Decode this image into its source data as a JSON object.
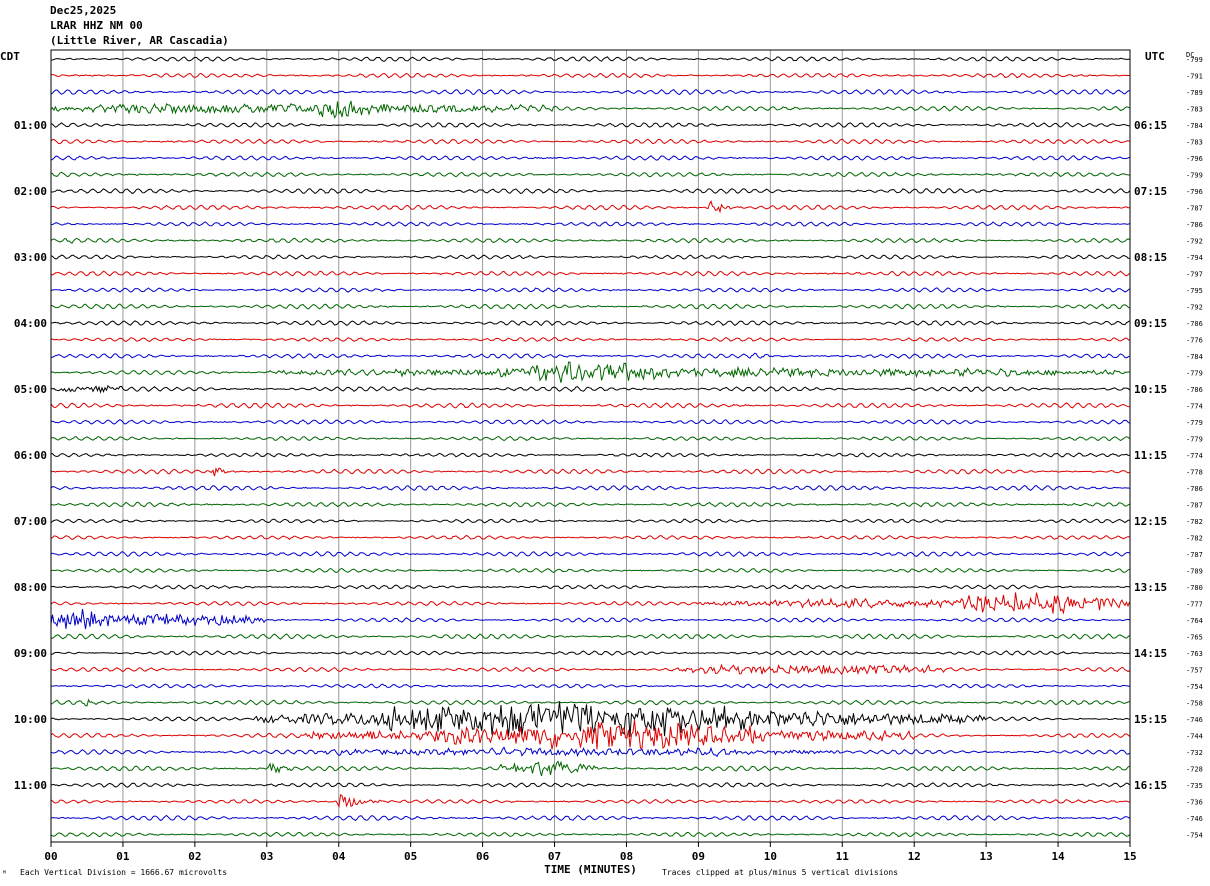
{
  "header": {
    "date": "Dec25,2025",
    "station": "LRAR HHZ NM 00",
    "location": "(Little River, AR Cascadia)"
  },
  "left_axis_label": "CDT",
  "right_axis_label": "UTC",
  "dc_label": "DC",
  "footer": {
    "mark": "ᴹ",
    "scale": "Each Vertical Division = 1666.67 microvolts",
    "xlabel": "TIME (MINUTES)",
    "clip_note": "Traces clipped at plus/minus 5 vertical divisions"
  },
  "chart_data": {
    "type": "line",
    "title": "LRAR HHZ NM 00",
    "xlabel": "TIME (MINUTES)",
    "xlim": [
      0,
      15
    ],
    "x_ticks": [
      "00",
      "01",
      "02",
      "03",
      "04",
      "05",
      "06",
      "07",
      "08",
      "09",
      "10",
      "11",
      "12",
      "13",
      "14",
      "15"
    ],
    "trace_colors": [
      "#000000",
      "#dd0000",
      "#0000cc",
      "#006600"
    ],
    "left_time_labels": [
      {
        "row": 4,
        "label": "01:00"
      },
      {
        "row": 8,
        "label": "02:00"
      },
      {
        "row": 12,
        "label": "03:00"
      },
      {
        "row": 16,
        "label": "04:00"
      },
      {
        "row": 20,
        "label": "05:00"
      },
      {
        "row": 24,
        "label": "06:00"
      },
      {
        "row": 28,
        "label": "07:00"
      },
      {
        "row": 32,
        "label": "08:00"
      },
      {
        "row": 36,
        "label": "09:00"
      },
      {
        "row": 40,
        "label": "10:00"
      },
      {
        "row": 44,
        "label": "11:00"
      }
    ],
    "right_time_labels": [
      {
        "row": 4,
        "label": "06:15"
      },
      {
        "row": 8,
        "label": "07:15"
      },
      {
        "row": 12,
        "label": "08:15"
      },
      {
        "row": 16,
        "label": "09:15"
      },
      {
        "row": 20,
        "label": "10:15"
      },
      {
        "row": 24,
        "label": "11:15"
      },
      {
        "row": 28,
        "label": "12:15"
      },
      {
        "row": 32,
        "label": "13:15"
      },
      {
        "row": 36,
        "label": "14:15"
      },
      {
        "row": 40,
        "label": "15:15"
      },
      {
        "row": 44,
        "label": "16:15"
      }
    ],
    "dc_offsets": [
      "-799",
      "-791",
      "-789",
      "-783",
      "-784",
      "-783",
      "-796",
      "-799",
      "-796",
      "-787",
      "-786",
      "-792",
      "-794",
      "-797",
      "-795",
      "-792",
      "-786",
      "-776",
      "-784",
      "-779",
      "-786",
      "-774",
      "-779",
      "-779",
      "-774",
      "-778",
      "-786",
      "-787",
      "-782",
      "-782",
      "-787",
      "-789",
      "-780",
      "-777",
      "-764",
      "-765",
      "-763",
      "-757",
      "-754",
      "-758",
      "-746",
      "-744",
      "-732",
      "-728",
      "-735",
      "-736",
      "-746",
      "-754"
    ],
    "events": [
      {
        "row": 3,
        "start": 0.0,
        "end": 7.0,
        "amp": 0.5,
        "kind": "noise"
      },
      {
        "row": 3,
        "start": 3.7,
        "end": 4.5,
        "amp": 0.8,
        "kind": "noise"
      },
      {
        "row": 9,
        "start": 9.1,
        "end": 9.6,
        "amp": 1.6,
        "kind": "quake"
      },
      {
        "row": 11,
        "start": 0.15,
        "end": 0.45,
        "amp": 0.5,
        "kind": "quake"
      },
      {
        "row": 18,
        "start": 9.7,
        "end": 10.1,
        "amp": 0.4,
        "kind": "quake"
      },
      {
        "row": 19,
        "start": 3.0,
        "end": 15.0,
        "amp": 0.4,
        "kind": "noise"
      },
      {
        "row": 19,
        "start": 6.2,
        "end": 8.6,
        "amp": 0.9,
        "kind": "noise"
      },
      {
        "row": 20,
        "start": 0.0,
        "end": 1.0,
        "amp": 0.35,
        "kind": "noise"
      },
      {
        "row": 25,
        "start": 2.2,
        "end": 2.6,
        "amp": 1.0,
        "kind": "quake"
      },
      {
        "row": 33,
        "start": 9.0,
        "end": 15.0,
        "amp": 0.4,
        "kind": "noise"
      },
      {
        "row": 33,
        "start": 12.5,
        "end": 15.0,
        "amp": 0.9,
        "kind": "noise"
      },
      {
        "row": 34,
        "start": 0.0,
        "end": 3.0,
        "amp": 0.6,
        "kind": "noise"
      },
      {
        "row": 34,
        "start": 0.0,
        "end": 0.8,
        "amp": 1.0,
        "kind": "noise"
      },
      {
        "row": 37,
        "start": 8.7,
        "end": 12.5,
        "amp": 0.45,
        "kind": "noise"
      },
      {
        "row": 39,
        "start": 0.45,
        "end": 0.75,
        "amp": 0.6,
        "kind": "quake"
      },
      {
        "row": 40,
        "start": 2.8,
        "end": 13.0,
        "amp": 0.9,
        "kind": "noise"
      },
      {
        "row": 40,
        "start": 4.5,
        "end": 9.7,
        "amp": 1.4,
        "kind": "noise"
      },
      {
        "row": 41,
        "start": 3.5,
        "end": 12.0,
        "amp": 0.75,
        "kind": "noise"
      },
      {
        "row": 41,
        "start": 5.5,
        "end": 10.0,
        "amp": 1.0,
        "kind": "noise"
      },
      {
        "row": 42,
        "start": 3.5,
        "end": 11.0,
        "amp": 0.35,
        "kind": "noise"
      },
      {
        "row": 43,
        "start": 3.0,
        "end": 3.4,
        "amp": 1.2,
        "kind": "quake"
      },
      {
        "row": 43,
        "start": 6.2,
        "end": 7.6,
        "amp": 0.7,
        "kind": "noise"
      },
      {
        "row": 45,
        "start": 3.95,
        "end": 4.6,
        "amp": 1.6,
        "kind": "quake"
      }
    ]
  }
}
